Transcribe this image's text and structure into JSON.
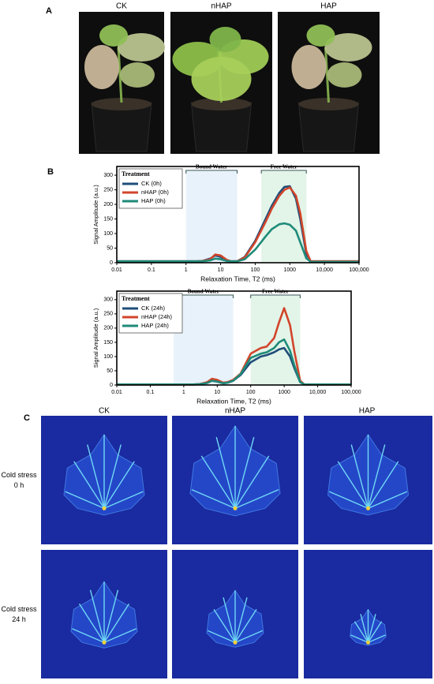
{
  "panels": {
    "a": "A",
    "b": "B",
    "c": "C"
  },
  "photos": {
    "labels": [
      "CK",
      "nHAP",
      "HAP"
    ]
  },
  "mri": {
    "columns": [
      "CK",
      "nHAP",
      "HAP"
    ],
    "rows": [
      [
        "Cold stress",
        "0 h"
      ],
      [
        "Cold stress",
        "24 h"
      ]
    ]
  },
  "chart_data": [
    {
      "type": "line",
      "x_label": "Relaxation Time, T2 (ms)",
      "y_label": "Signal Amplitude (a.u.)",
      "log_x": true,
      "legend_title": "Treatment",
      "legend": "upper left",
      "x": [
        0.01,
        0.1,
        1,
        2,
        3,
        5,
        7,
        10,
        15,
        20,
        30,
        50,
        100,
        200,
        300,
        500,
        700,
        1000,
        1500,
        2000,
        3000,
        4000,
        10000,
        100000
      ],
      "xlim": [
        0.01,
        100000
      ],
      "xticks": [
        0.01,
        0.1,
        1,
        10,
        100,
        1000,
        {
          "value": 10000,
          "label": "10,000"
        },
        {
          "value": 100000,
          "label": "100,000"
        }
      ],
      "ylim": [
        0,
        330
      ],
      "yticks": [
        0,
        50,
        100,
        150,
        200,
        250,
        300
      ],
      "regions": [
        {
          "label": "Bound Water",
          "range": [
            1,
            30
          ],
          "color": "#e8f2fb"
        },
        {
          "label": "Free Water",
          "range": [
            150,
            3000
          ],
          "color": "#e3f4e8"
        }
      ],
      "series": [
        {
          "name": "CK (0h)",
          "color": "#1f4e79",
          "values": [
            5,
            5,
            5,
            5,
            6,
            14,
            25,
            20,
            8,
            5,
            5,
            20,
            75,
            150,
            195,
            240,
            260,
            262,
            220,
            150,
            30,
            5,
            5,
            5
          ]
        },
        {
          "name": "nHAP (0h)",
          "color": "#d2452b",
          "values": [
            5,
            5,
            5,
            5,
            6,
            12,
            28,
            25,
            10,
            5,
            5,
            18,
            70,
            140,
            185,
            230,
            250,
            258,
            230,
            170,
            40,
            5,
            5,
            5
          ]
        },
        {
          "name": "HAP (0h)",
          "color": "#1f8a78",
          "values": [
            5,
            5,
            5,
            5,
            5,
            8,
            14,
            12,
            6,
            5,
            5,
            12,
            45,
            90,
            115,
            132,
            135,
            130,
            110,
            70,
            15,
            3,
            3,
            3
          ]
        }
      ]
    },
    {
      "type": "line",
      "x_label": "Relaxation Time, T2 (ms)",
      "y_label": "Signal Amplitude (a.u.)",
      "log_x": true,
      "legend_title": "Treatment",
      "legend": "upper left",
      "x": [
        0.01,
        0.1,
        1,
        2,
        3,
        5,
        7,
        10,
        15,
        20,
        30,
        50,
        100,
        200,
        300,
        500,
        700,
        1000,
        1500,
        2000,
        3000,
        4000,
        10000,
        100000
      ],
      "xlim": [
        0.01,
        100000
      ],
      "xticks": [
        0.01,
        0.1,
        1,
        10,
        100,
        1000,
        {
          "value": 10000,
          "label": "10,000"
        },
        {
          "value": 100000,
          "label": "100,000"
        }
      ],
      "ylim": [
        0,
        330
      ],
      "yticks": [
        0,
        50,
        100,
        150,
        200,
        250,
        300
      ],
      "regions": [
        {
          "label": "Bound Water",
          "range": [
            0.5,
            30
          ],
          "color": "#e8f2fb"
        },
        {
          "label": "Free Water",
          "range": [
            100,
            3000
          ],
          "color": "#e3f4e8"
        }
      ],
      "series": [
        {
          "name": "CK (24h)",
          "color": "#1f4e79",
          "values": [
            2,
            2,
            2,
            2,
            3,
            8,
            15,
            12,
            6,
            8,
            15,
            35,
            80,
            100,
            105,
            115,
            125,
            130,
            100,
            60,
            10,
            2,
            2,
            2
          ]
        },
        {
          "name": "nHAP (24h)",
          "color": "#d2452b",
          "values": [
            2,
            2,
            2,
            2,
            3,
            10,
            22,
            18,
            8,
            10,
            18,
            40,
            110,
            130,
            135,
            165,
            220,
            270,
            210,
            120,
            15,
            2,
            2,
            2
          ]
        },
        {
          "name": "HAP (24h)",
          "color": "#1f8a78",
          "values": [
            2,
            2,
            2,
            2,
            3,
            7,
            15,
            12,
            6,
            8,
            15,
            38,
            95,
            110,
            115,
            130,
            150,
            160,
            120,
            70,
            10,
            2,
            2,
            2
          ]
        }
      ]
    }
  ]
}
